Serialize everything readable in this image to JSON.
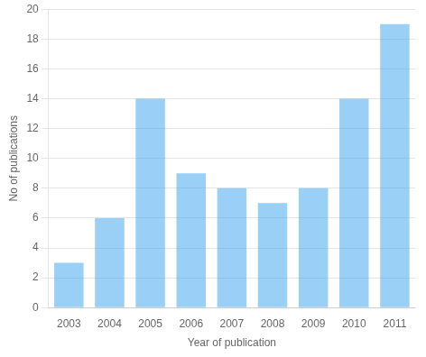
{
  "chart_data": {
    "type": "bar",
    "categories": [
      "2003",
      "2004",
      "2005",
      "2006",
      "2007",
      "2008",
      "2009",
      "2010",
      "2011"
    ],
    "values": [
      3,
      6,
      14,
      9,
      8,
      7,
      8,
      14,
      19
    ],
    "xlabel": "Year of publication",
    "ylabel": "No of publications",
    "ylim": [
      0,
      20
    ],
    "yticks": [
      0,
      2,
      4,
      6,
      8,
      10,
      12,
      14,
      16,
      18,
      20
    ],
    "grid": true
  }
}
